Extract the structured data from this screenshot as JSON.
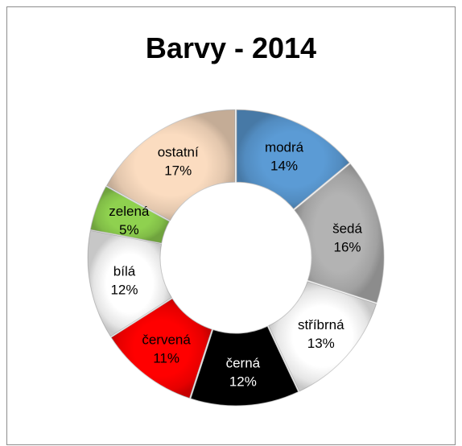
{
  "chart_data": {
    "type": "pie",
    "variant": "doughnut",
    "title": "Barvy - 2014",
    "categories": [
      "modrá",
      "šedá",
      "stříbrná",
      "černá",
      "červená",
      "bílá",
      "zelená",
      "ostatní"
    ],
    "values": [
      14,
      16,
      13,
      12,
      11,
      12,
      5,
      17
    ],
    "percent_labels": [
      "14%",
      "16%",
      "13%",
      "12%",
      "11%",
      "12%",
      "5%",
      "17%"
    ],
    "colors": [
      "#5b9bd5",
      "#b3b3b3",
      "#ffffff",
      "#000000",
      "#ff0000",
      "#ffffff",
      "#8fd14f",
      "#fbdcc0"
    ],
    "label_colors": [
      "#000000",
      "#000000",
      "#000000",
      "#ffffff",
      "#000000",
      "#000000",
      "#000000",
      "#000000"
    ],
    "start_angle_deg": 0,
    "direction": "clockwise",
    "legend": "none"
  }
}
